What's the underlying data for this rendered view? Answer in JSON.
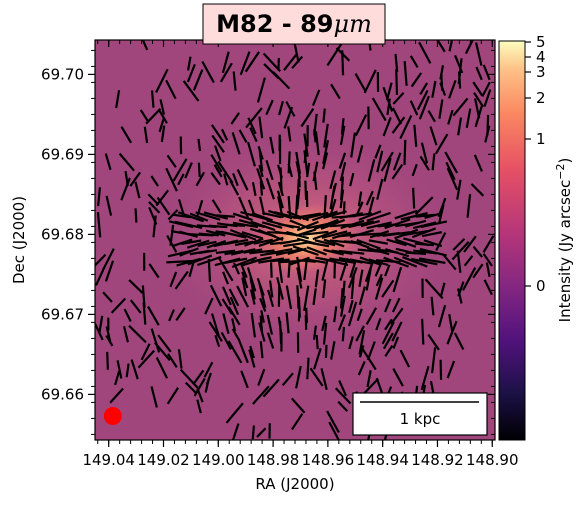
{
  "chart_data": {
    "type": "heatmap",
    "title": "M82  - 89",
    "title_unit": "μm",
    "xlabel": "RA (J2000)",
    "ylabel": "Dec (J2000)",
    "xlim": [
      149.045,
      148.899
    ],
    "ylim": [
      69.6543,
      69.7043
    ],
    "xticks": [
      149.04,
      149.02,
      149.0,
      148.98,
      148.96,
      148.94,
      148.92,
      148.9
    ],
    "xtick_labels": [
      "149.04",
      "149.02",
      "149.00",
      "148.98",
      "148.96",
      "148.94",
      "148.92",
      "148.90"
    ],
    "yticks": [
      69.66,
      69.67,
      69.68,
      69.69,
      69.7
    ],
    "ytick_labels": [
      "69.66",
      "69.67",
      "69.68",
      "69.69",
      "69.70"
    ],
    "colorbar": {
      "label": "Intensity (Jy arcsec$^{-2}$)",
      "label_main": "Intensity (Jy arcsec",
      "label_exp": "−2",
      "label_close": ")",
      "colormap": "magma",
      "ticks": [
        0,
        1,
        2,
        3,
        4,
        5
      ],
      "tick_labels": [
        "0",
        "1",
        "2",
        "3",
        "4",
        "5"
      ]
    },
    "source_center": {
      "ra": 148.968,
      "dec": 69.6795
    },
    "scalebar": {
      "label": "1 kpc"
    },
    "beam": {
      "color": "#ff0000",
      "ra": 149.0385,
      "dec": 69.6573
    },
    "vectors": "polarization vector field (black segments)"
  }
}
